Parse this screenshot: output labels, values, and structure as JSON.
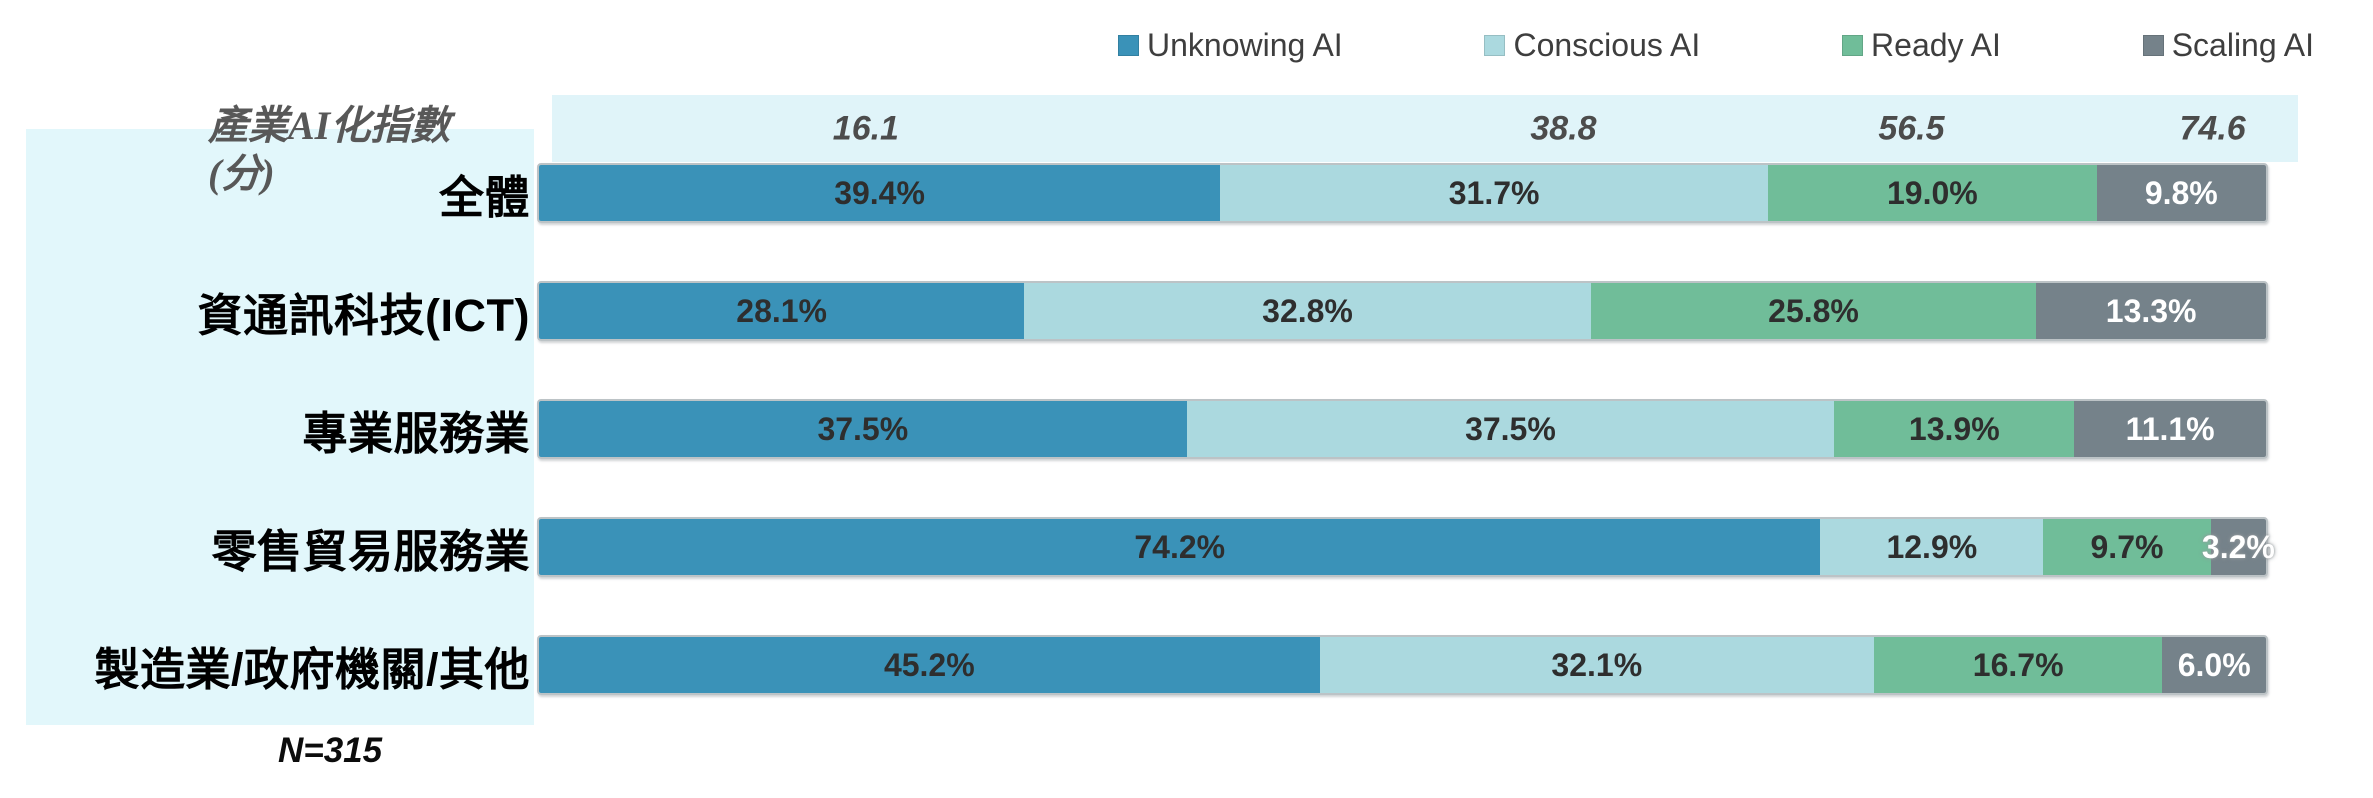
{
  "chart_data": {
    "type": "bar",
    "variant": "horizontal-stacked-100",
    "legend_position": "top",
    "grid": false,
    "value_suffix": "%",
    "index_axis_title_line1": "產業AI化指數",
    "index_axis_title_line2": "(分)",
    "index_scores": [
      16.1,
      38.8,
      56.5,
      74.6
    ],
    "categories": [
      "全體",
      "資通訊科技(ICT)",
      "專業服務業",
      "零售貿易服務業",
      "製造業/政府機關/其他"
    ],
    "series": [
      {
        "name": "Unknowing AI",
        "color": "#3A92B8",
        "label_color": "#2E2E2E",
        "values": [
          39.4,
          28.1,
          37.5,
          74.2,
          45.2
        ]
      },
      {
        "name": "Conscious AI",
        "color": "#ABD9DF",
        "label_color": "#2E2E2E",
        "values": [
          31.7,
          32.8,
          37.5,
          12.9,
          32.1
        ]
      },
      {
        "name": "Ready AI",
        "color": "#70BD99",
        "label_color": "#2E2E2E",
        "values": [
          19.0,
          25.8,
          13.9,
          9.7,
          16.7
        ]
      },
      {
        "name": "Scaling AI",
        "color": "#75828A",
        "label_color": "#FFFFFF",
        "values": [
          9.8,
          13.3,
          11.1,
          3.2,
          6.0
        ]
      }
    ],
    "sample_note": "N=315",
    "colors": {
      "panel_bg": "#E2F7FB",
      "band_bg": "#E0F4F9",
      "legend_text": "#3E3E3E",
      "index_text": "#4C4C4C",
      "title_text": "#585858",
      "category_text": "#000000"
    }
  }
}
